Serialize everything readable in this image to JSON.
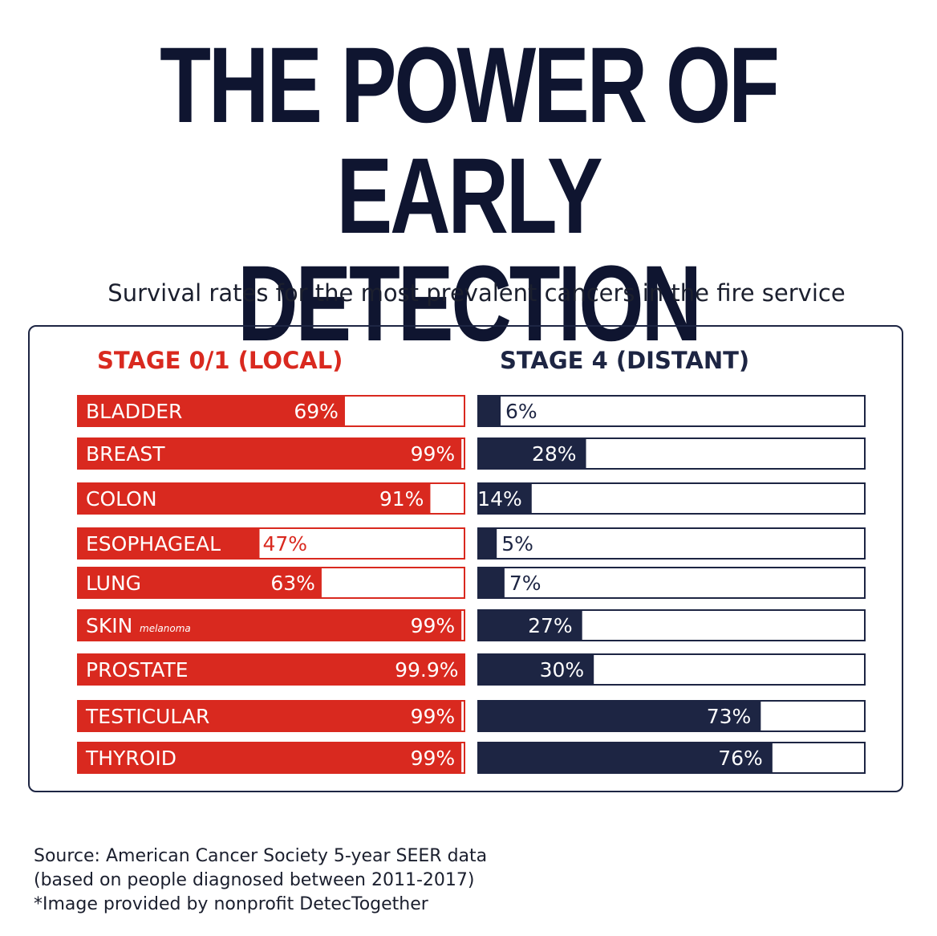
{
  "title_line1": "THE POWER OF",
  "title_line2": "EARLY DETECTION",
  "subtitle": "Survival rates for the most prevalent cancers in the fire service",
  "colors": {
    "local": "#d9291f",
    "distant": "#1d2543",
    "title": "#0f1530"
  },
  "chart_data": {
    "type": "bar",
    "orientation": "horizontal",
    "categories": [
      "BLADDER",
      "BREAST",
      "COLON",
      "ESOPHAGEAL",
      "LUNG",
      "SKIN",
      "PROSTATE",
      "TESTICULAR",
      "THYROID"
    ],
    "category_notes": {
      "SKIN": "melanoma"
    },
    "xlim": [
      0,
      100
    ],
    "series": [
      {
        "name": "STAGE 0/1 (LOCAL)",
        "values": [
          69,
          99,
          91,
          47,
          63,
          99,
          99.9,
          99,
          99
        ],
        "labels": [
          "69%",
          "99%",
          "91%",
          "47%",
          "63%",
          "99%",
          "99.9%",
          "99%",
          "99%"
        ]
      },
      {
        "name": "STAGE 4 (DISTANT)",
        "values": [
          6,
          28,
          14,
          5,
          7,
          27,
          30,
          73,
          76
        ],
        "labels": [
          "6%",
          "28%",
          "14%",
          "5%",
          "7%",
          "27%",
          "30%",
          "73%",
          "76%"
        ]
      }
    ]
  },
  "footer": {
    "line1": "Source: American Cancer Society 5-year SEER data",
    "line2": "(based on people diagnosed between 2011-2017)",
    "line3": "*Image provided by nonprofit DetecTogether"
  }
}
